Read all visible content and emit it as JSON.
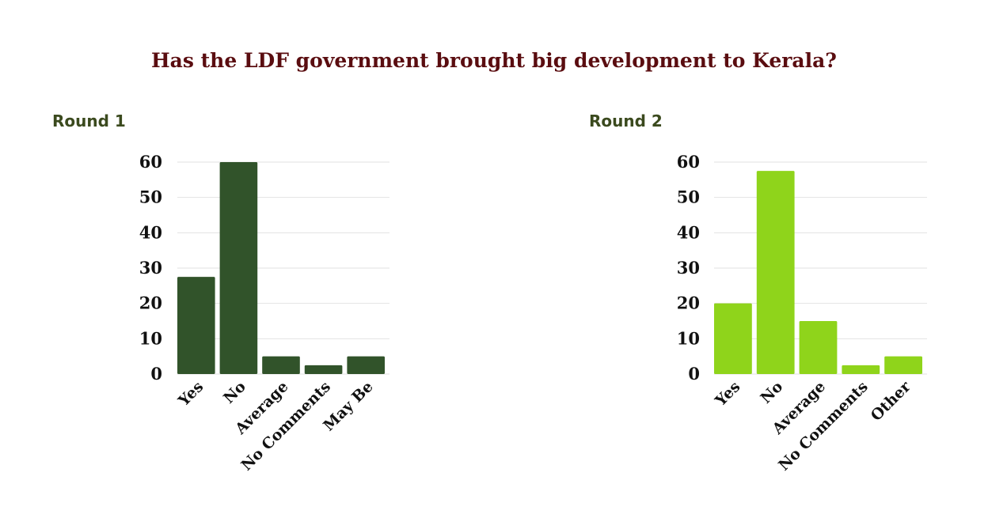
{
  "title": "Has the LDF government brought big development to Kerala?",
  "chart_data": [
    {
      "type": "bar",
      "title": "Round 1",
      "color": "#31532a",
      "categories": [
        "Yes",
        "No",
        "Average",
        "No Comments",
        "May Be"
      ],
      "values": [
        27.5,
        60,
        5,
        2.5,
        5
      ],
      "yticks": [
        0,
        10,
        20,
        30,
        40,
        50,
        60
      ],
      "ylim": [
        0,
        60
      ],
      "grid": true
    },
    {
      "type": "bar",
      "title": "Round 2",
      "color": "#8fd41b",
      "categories": [
        "Yes",
        "No",
        "Average",
        "No Comments",
        "Other"
      ],
      "values": [
        20,
        57.5,
        15,
        2.5,
        5
      ],
      "yticks": [
        0,
        10,
        20,
        30,
        40,
        50,
        60
      ],
      "ylim": [
        0,
        60
      ],
      "grid": true
    }
  ]
}
